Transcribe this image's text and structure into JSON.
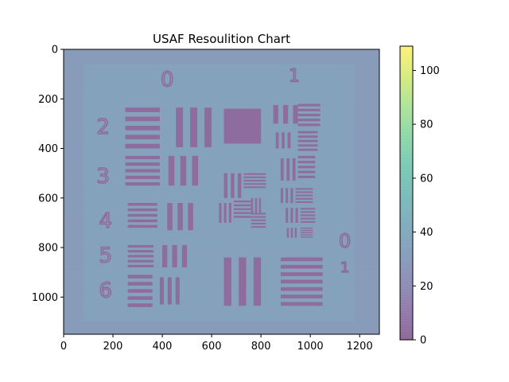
{
  "chart_data": {
    "type": "heatmap",
    "title": "USAF Resoulition Chart",
    "xlabel": "",
    "ylabel": "",
    "xlim": [
      0,
      1280
    ],
    "ylim": [
      1150,
      0
    ],
    "x_ticks": [
      0,
      200,
      400,
      600,
      800,
      1000,
      1200
    ],
    "y_ticks": [
      0,
      200,
      400,
      600,
      800,
      1000
    ],
    "colorbar": {
      "colormap": "viridis",
      "alpha": 0.6,
      "range": [
        0,
        109
      ],
      "ticks": [
        0,
        20,
        40,
        60,
        80,
        100
      ]
    },
    "colors": {
      "background_value": 30,
      "dark_value": 3,
      "bright_value": 45
    },
    "grid": false
  }
}
